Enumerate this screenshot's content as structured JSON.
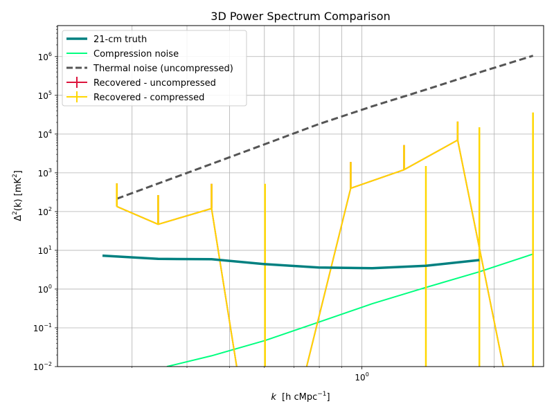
{
  "chart_data": {
    "type": "line",
    "title": "3D Power Spectrum Comparison",
    "xlabel_main": "k",
    "xlabel_unit": "[h cMpc",
    "xlabel_exp": "−1",
    "xlabel_close": "]",
    "ylabel_main": "Δ",
    "ylabel_sup": "2",
    "ylabel_arg": "(k) [mK",
    "ylabel_unit_exp": "2",
    "ylabel_close": "]",
    "xscale": "log",
    "yscale": "log",
    "xlim": [
      0.203,
      2.59
    ],
    "ylim": [
      0.01,
      6300000
    ],
    "grid": true,
    "legend_position": "upper-left",
    "x_ticks": [
      {
        "value": 1,
        "base": "10",
        "exp": "0"
      }
    ],
    "y_ticks": [
      {
        "value": 0.01,
        "base": "10",
        "exp": "−2"
      },
      {
        "value": 0.1,
        "base": "10",
        "exp": "−1"
      },
      {
        "value": 1,
        "base": "10",
        "exp": "0"
      },
      {
        "value": 10,
        "base": "10",
        "exp": "1"
      },
      {
        "value": 100,
        "base": "10",
        "exp": "2"
      },
      {
        "value": 1000,
        "base": "10",
        "exp": "3"
      },
      {
        "value": 10000,
        "base": "10",
        "exp": "4"
      },
      {
        "value": 100000,
        "base": "10",
        "exp": "5"
      },
      {
        "value": 1000000,
        "base": "10",
        "exp": "6"
      }
    ],
    "series": [
      {
        "name": "21-cm truth",
        "style": "solid",
        "color": "#008080",
        "width": 3.5,
        "x": [
          0.257,
          0.344,
          0.455,
          0.602,
          0.797,
          1.056,
          1.398,
          1.85
        ],
        "y": [
          7.3,
          6.0,
          5.9,
          4.4,
          3.6,
          3.45,
          4.0,
          5.6
        ]
      },
      {
        "name": "Compression noise",
        "style": "solid",
        "color": "#00ff7f",
        "width": 2,
        "x": [
          0.36,
          0.455,
          0.602,
          0.797,
          1.056,
          1.398,
          1.85,
          2.45
        ],
        "y": [
          0.01,
          0.019,
          0.047,
          0.14,
          0.42,
          1.1,
          2.8,
          8.0
        ]
      },
      {
        "name": "Thermal noise (uncompressed)",
        "style": "dashed",
        "color": "#555555",
        "width": 3,
        "x": [
          0.277,
          0.455,
          0.602,
          0.797,
          1.056,
          1.398,
          1.85,
          2.45
        ],
        "y": [
          215,
          1700,
          5500,
          18000,
          52000,
          140000,
          390000,
          1050000
        ]
      },
      {
        "name": "Recovered - uncompressed",
        "style": "errorbar",
        "color": "#dc143c",
        "width": 2,
        "x": [
          0.277,
          0.344,
          0.455,
          0.536,
          0.712,
          0.943,
          1.247,
          1.651,
          2.184
        ],
        "y": [
          135,
          47,
          120,
          0.001,
          0.001,
          400,
          1200,
          7000,
          0.001
        ],
        "yerr_low": [
          0.001,
          0.001,
          0.001,
          0.001,
          0.001,
          0.001,
          0.001,
          180,
          0.001
        ],
        "yerr_high": [
          400,
          220,
          400,
          0.001,
          0.001,
          1500,
          4000,
          14000,
          0.001
        ]
      },
      {
        "name": "Recovered - compressed",
        "style": "errorbar",
        "color": "#ffd700",
        "width": 2,
        "x": [
          0.277,
          0.344,
          0.455,
          0.536,
          0.712,
          0.943,
          1.247,
          1.651,
          2.184
        ],
        "y": [
          135,
          47,
          120,
          0.001,
          0.001,
          400,
          1200,
          7000,
          0.001
        ],
        "yerr_low": [
          0.001,
          0.001,
          0.001,
          0.001,
          0.001,
          0.001,
          0.001,
          180,
          0.001
        ],
        "yerr_high": [
          400,
          220,
          400,
          0.001,
          0.001,
          1500,
          4000,
          14000,
          0.001
        ]
      }
    ],
    "extra_errorbars": {
      "color": "#ffd700",
      "x": [
        0.602,
        1.398,
        1.85,
        2.45
      ],
      "y_high": [
        520,
        1500,
        15000,
        36000
      ]
    }
  }
}
